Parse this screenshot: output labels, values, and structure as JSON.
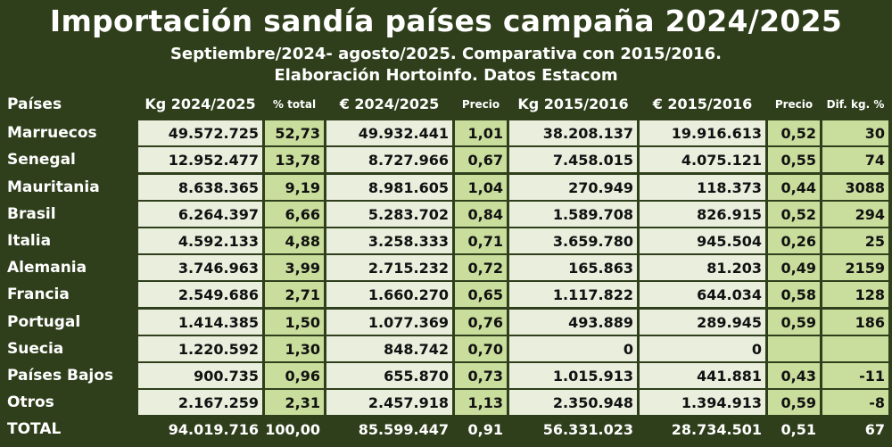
{
  "chart_data": {
    "type": "table",
    "title": "Importación sandía países campaña 2024/2025",
    "subtitle_line1": "Septiembre/2024- agosto/2025. Comparativa con 2015/2016.",
    "subtitle_line2": "Elaboración Hortoinfo. Datos Estacom",
    "columns": [
      "Países",
      "Kg 2024/2025",
      "% total",
      "€ 2024/2025",
      "Precio",
      "Kg 2015/2016",
      "€ 2015/2016",
      "Precio",
      "Dif. kg. %"
    ],
    "rows": [
      [
        "Marruecos",
        "49.572.725",
        "52,73",
        "49.932.441",
        "1,01",
        "38.208.137",
        "19.916.613",
        "0,52",
        "30"
      ],
      [
        "Senegal",
        "12.952.477",
        "13,78",
        "8.727.966",
        "0,67",
        "7.458.015",
        "4.075.121",
        "0,55",
        "74"
      ],
      [
        "Mauritania",
        "8.638.365",
        "9,19",
        "8.981.605",
        "1,04",
        "270.949",
        "118.373",
        "0,44",
        "3088"
      ],
      [
        "Brasil",
        "6.264.397",
        "6,66",
        "5.283.702",
        "0,84",
        "1.589.708",
        "826.915",
        "0,52",
        "294"
      ],
      [
        "Italia",
        "4.592.133",
        "4,88",
        "3.258.333",
        "0,71",
        "3.659.780",
        "945.504",
        "0,26",
        "25"
      ],
      [
        "Alemania",
        "3.746.963",
        "3,99",
        "2.715.232",
        "0,72",
        "165.863",
        "81.203",
        "0,49",
        "2159"
      ],
      [
        "Francia",
        "2.549.686",
        "2,71",
        "1.660.270",
        "0,65",
        "1.117.822",
        "644.034",
        "0,58",
        "128"
      ],
      [
        "Portugal",
        "1.414.385",
        "1,50",
        "1.077.369",
        "0,76",
        "493.889",
        "289.945",
        "0,59",
        "186"
      ],
      [
        "Suecia",
        "1.220.592",
        "1,30",
        "848.742",
        "0,70",
        "0",
        "0",
        "",
        ""
      ],
      [
        "Países Bajos",
        "900.735",
        "0,96",
        "655.870",
        "0,73",
        "1.015.913",
        "441.881",
        "0,43",
        "-11"
      ],
      [
        "Otros",
        "2.167.259",
        "2,31",
        "2.457.918",
        "1,13",
        "2.350.948",
        "1.394.913",
        "0,59",
        "-8"
      ]
    ],
    "total": [
      "TOTAL",
      "94.019.716",
      "100,00",
      "85.599.447",
      "0,91",
      "56.331.023",
      "28.734.501",
      "0,51",
      "67"
    ]
  },
  "colors": {
    "frame": "#2f3f1b",
    "cell_light": "#e9eedd",
    "cell_mid": "#c9dd9c",
    "header_text": "#ffffff"
  }
}
